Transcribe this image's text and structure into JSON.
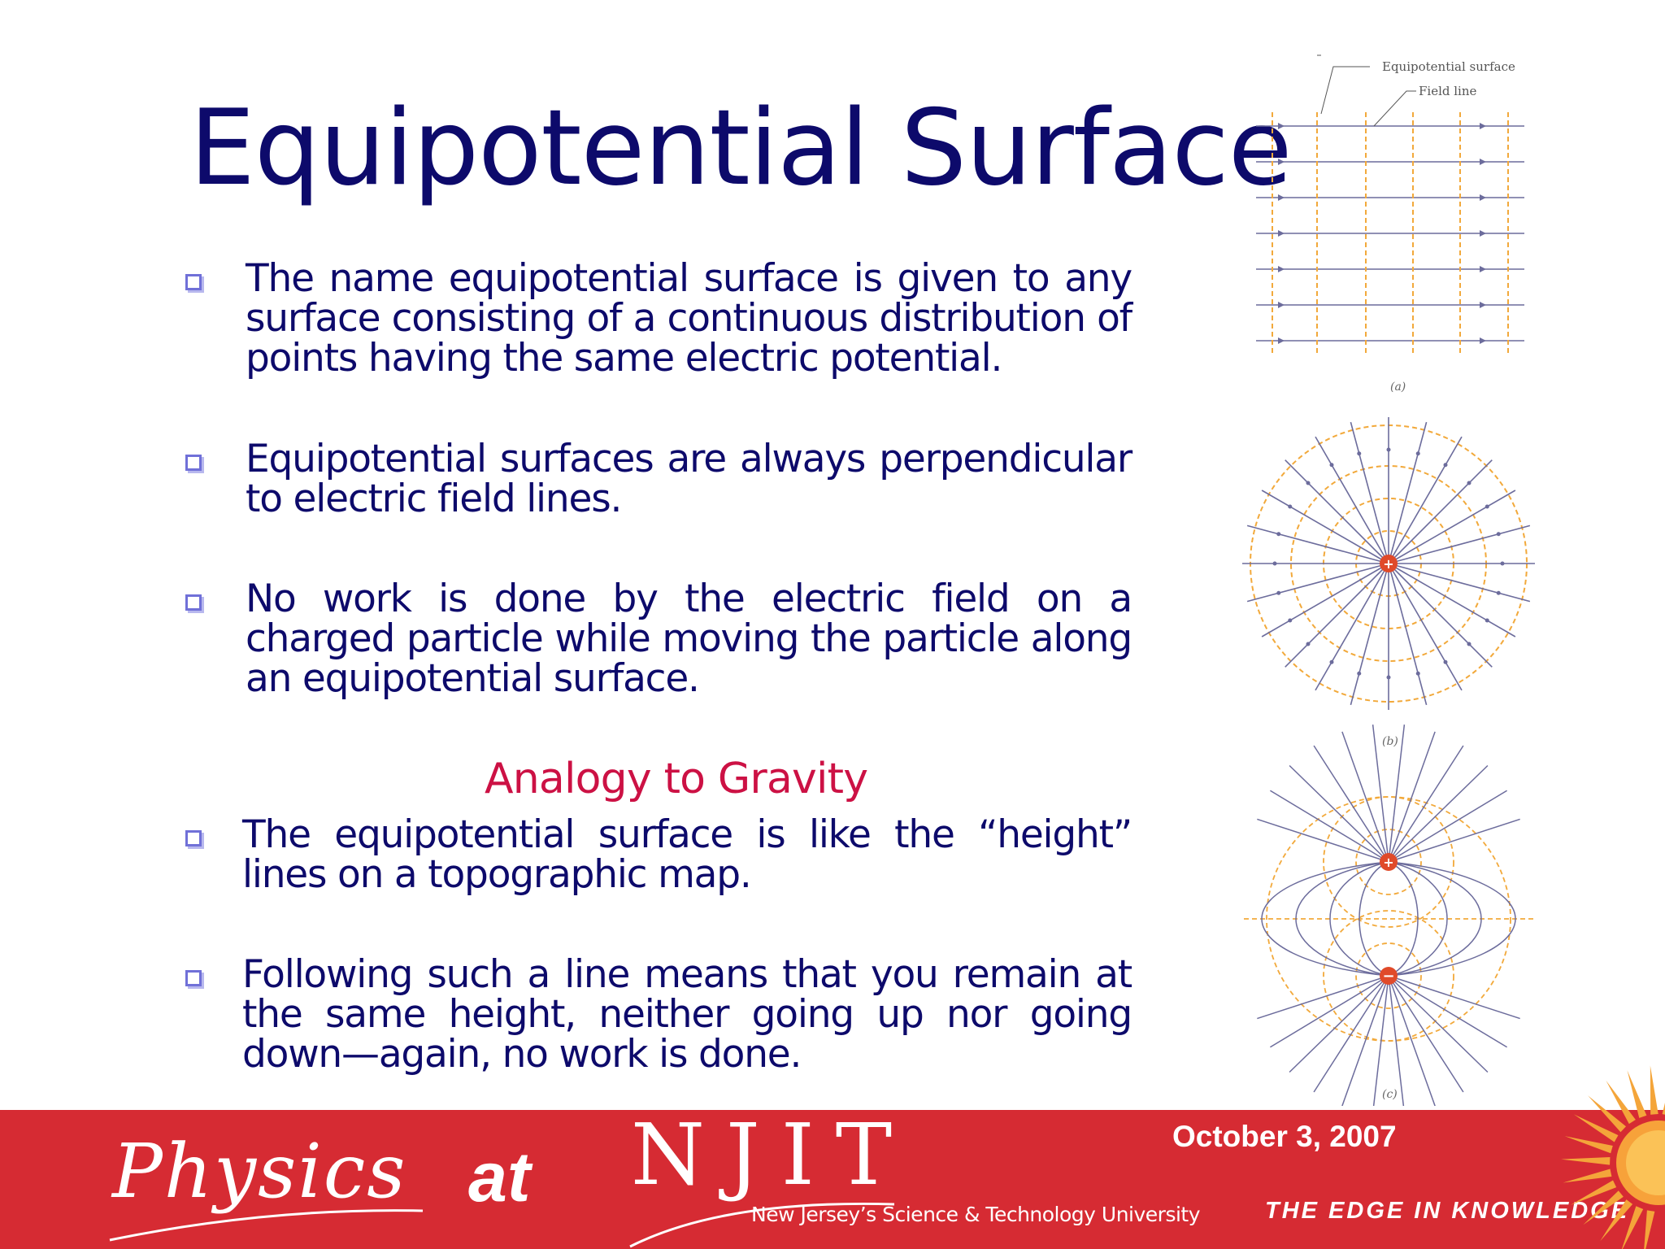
{
  "title": "Equipotential Surface",
  "bullets": [
    "The name equipotential surface is given to any surface consisting of a continuous distribution of points having the same electric potential.",
    "Equipotential surfaces are always perpendicular to electric field lines.",
    "No work is done by the electric field on a charged particle while moving the particle along an equipotential surface."
  ],
  "subheading": "Analogy to Gravity",
  "analogy_bullets": [
    "The equipotential surface is like the “height” lines on a topographic map.",
    "Following such a line means that you remain at the same height, neither going up nor going down—again, no work is done."
  ],
  "figure": {
    "label_equipotential": "Equipotential surface",
    "label_field_line": "Field line",
    "caption_a": "(a)",
    "caption_b": "(b)",
    "caption_c": "(c)"
  },
  "footer": {
    "physics": "Physics",
    "at": "at",
    "njit": "NJIT",
    "university": "New Jersey’s Science & Technology University",
    "date": "October 3, 2007",
    "tagline": "THE EDGE IN KNOWLEDGE"
  },
  "colors": {
    "title": "#0d0a6b",
    "subheading": "#cc1144",
    "footer_bg": "#d62b33",
    "field_line": "#6c6c9c",
    "equipotential": "#f2a93b"
  }
}
